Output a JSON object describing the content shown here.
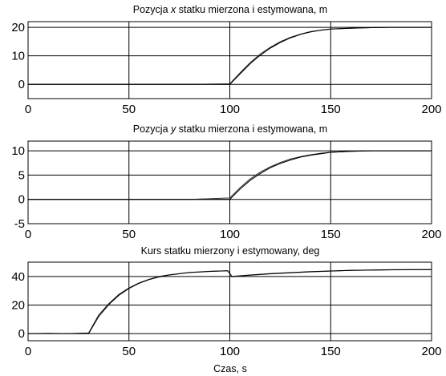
{
  "chart_data": [
    {
      "type": "line",
      "title_pre": "Pozycja ",
      "title_var": "x",
      "title_post": " statku mierzona i estymowana, m",
      "xlabel": "",
      "xlim": [
        0,
        200
      ],
      "ylim": [
        -5,
        22
      ],
      "xticks": [
        0,
        50,
        100,
        150,
        200
      ],
      "yticks": [
        0,
        10,
        20
      ],
      "x_tick_labels": [
        "0",
        "50",
        "100",
        "150",
        "200"
      ],
      "y_tick_labels": [
        "0",
        "10",
        "20"
      ],
      "grid": "x-major",
      "series": [
        {
          "role": "measured",
          "x": [
            0,
            20,
            40,
            60,
            80,
            100,
            105,
            110,
            115,
            120,
            125,
            130,
            135,
            140,
            145,
            150,
            160,
            170,
            180,
            190,
            200
          ],
          "values": [
            0,
            0,
            0,
            0,
            0,
            0.2,
            4.0,
            7.6,
            10.6,
            13.0,
            15.0,
            16.5,
            17.6,
            18.5,
            19.0,
            19.4,
            19.7,
            19.9,
            20.0,
            20.0,
            20.0
          ]
        },
        {
          "role": "estimated",
          "x": [
            0,
            20,
            40,
            60,
            80,
            100,
            105,
            110,
            115,
            120,
            125,
            130,
            135,
            140,
            145,
            150,
            160,
            170,
            180,
            190,
            200
          ],
          "values": [
            0,
            0,
            0,
            0,
            0,
            0,
            3.6,
            7.2,
            10.2,
            12.7,
            14.7,
            16.3,
            17.5,
            18.4,
            19.0,
            19.4,
            19.7,
            19.9,
            20.0,
            20.0,
            20.0
          ]
        }
      ]
    },
    {
      "type": "line",
      "title_pre": "Pozycja ",
      "title_var": "y",
      "title_post": " statku mierzona i estymowana, m",
      "xlabel": "",
      "xlim": [
        0,
        200
      ],
      "ylim": [
        -5,
        12
      ],
      "xticks": [
        0,
        50,
        100,
        150,
        200
      ],
      "yticks": [
        -5,
        0,
        5,
        10
      ],
      "x_tick_labels": [
        "0",
        "50",
        "100",
        "150",
        "200"
      ],
      "y_tick_labels": [
        "-5",
        "0",
        "5",
        "10"
      ],
      "grid": "x-major",
      "series": [
        {
          "role": "measured",
          "x": [
            0,
            20,
            40,
            60,
            80,
            100,
            105,
            110,
            115,
            120,
            125,
            130,
            135,
            140,
            145,
            150,
            160,
            170,
            180,
            190,
            200
          ],
          "values": [
            0,
            0,
            0,
            0,
            0,
            0.3,
            2.4,
            4.2,
            5.6,
            6.7,
            7.6,
            8.3,
            8.8,
            9.2,
            9.5,
            9.7,
            9.9,
            10.0,
            10.0,
            10.0,
            10.0
          ]
        },
        {
          "role": "estimated",
          "x": [
            0,
            20,
            40,
            60,
            80,
            100,
            105,
            110,
            115,
            120,
            125,
            130,
            135,
            140,
            145,
            150,
            160,
            170,
            180,
            190,
            200
          ],
          "values": [
            0,
            0,
            0,
            0,
            0,
            0,
            2.1,
            3.9,
            5.3,
            6.5,
            7.4,
            8.1,
            8.7,
            9.1,
            9.4,
            9.7,
            9.9,
            10.0,
            10.0,
            10.0,
            10.0
          ]
        }
      ]
    },
    {
      "type": "line",
      "title_pre": "Kurs statku mierzony i estymowany, deg",
      "title_var": "",
      "title_post": "",
      "xlabel": "Czas, s",
      "xlim": [
        0,
        200
      ],
      "ylim": [
        -5,
        50
      ],
      "xticks": [
        0,
        50,
        100,
        150,
        200
      ],
      "yticks": [
        0,
        20,
        40
      ],
      "x_tick_labels": [
        "0",
        "50",
        "100",
        "150",
        "200"
      ],
      "y_tick_labels": [
        "0",
        "20",
        "40"
      ],
      "grid": "x-major",
      "series": [
        {
          "role": "measured",
          "x": [
            0,
            10,
            20,
            25,
            30,
            35,
            40,
            45,
            50,
            55,
            60,
            65,
            70,
            80,
            90,
            99,
            101,
            110,
            120,
            140,
            160,
            180,
            200
          ],
          "values": [
            0,
            0.2,
            0,
            0.3,
            0.5,
            13.0,
            21.0,
            27.5,
            32.0,
            35.5,
            38.0,
            40.0,
            41.2,
            42.8,
            43.6,
            44.0,
            39.8,
            40.8,
            41.8,
            43.2,
            44.2,
            44.6,
            44.8
          ]
        },
        {
          "role": "estimated",
          "x": [
            0,
            10,
            20,
            25,
            30,
            35,
            40,
            45,
            50,
            55,
            60,
            65,
            70,
            80,
            90,
            99,
            101,
            110,
            120,
            140,
            160,
            180,
            200
          ],
          "values": [
            0,
            0,
            0,
            0,
            0,
            12.0,
            20.3,
            26.8,
            31.6,
            35.2,
            37.8,
            39.7,
            41.0,
            42.7,
            43.5,
            44.0,
            40.0,
            41.0,
            42.0,
            43.4,
            44.3,
            44.7,
            44.8
          ]
        }
      ]
    }
  ]
}
